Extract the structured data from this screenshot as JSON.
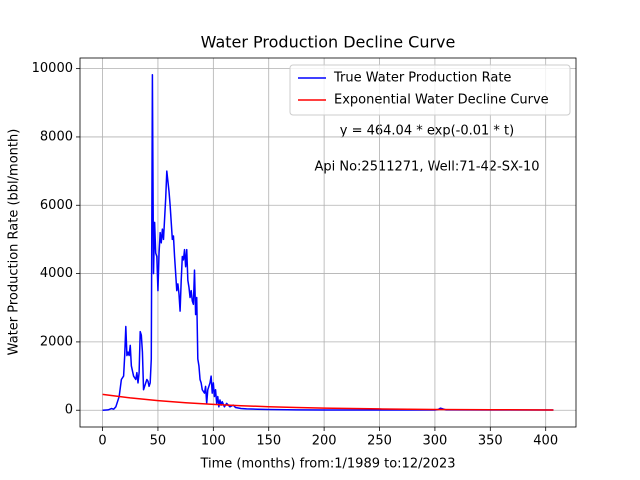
{
  "chart_data": {
    "type": "line",
    "title": "Water Production Decline Curve",
    "xlabel": "Time (months) from:1/1989 to:12/2023",
    "ylabel": "Water Production Rate (bbl/month)",
    "annotations": [
      "y = 464.04 * exp(-0.01 * t)",
      "Api No:2511271, Well:71-42-SX-10"
    ],
    "xlim": [
      -20.35,
      427.35
    ],
    "xticks": [
      0,
      50,
      100,
      150,
      200,
      250,
      300,
      350,
      400
    ],
    "ylim": [
      -491,
      10311
    ],
    "yticks": [
      0,
      2000,
      4000,
      6000,
      8000,
      10000
    ],
    "grid": true,
    "legend": "upper right",
    "series": [
      {
        "name": "True Water Production Rate",
        "color": "#0000ff",
        "x": [
          0,
          5,
          8,
          10,
          12,
          15,
          17,
          19,
          20,
          21,
          22,
          23,
          24,
          25,
          26,
          28,
          30,
          31,
          32,
          33,
          34,
          35,
          36,
          37,
          38,
          39,
          40,
          41,
          42,
          43,
          44,
          45,
          46,
          47,
          48,
          49,
          50,
          51,
          52,
          53,
          54,
          55,
          56,
          57,
          58,
          59,
          60,
          61,
          62,
          63,
          64,
          65,
          66,
          67,
          68,
          69,
          70,
          71,
          72,
          73,
          74,
          75,
          76,
          77,
          78,
          79,
          80,
          81,
          82,
          83,
          84,
          85,
          86,
          87,
          88,
          89,
          90,
          92,
          93,
          94,
          95,
          96,
          97,
          98,
          99,
          100,
          101,
          102,
          103,
          104,
          105,
          106,
          107,
          108,
          110,
          112,
          115,
          118,
          120,
          125,
          130,
          140,
          150,
          175,
          200,
          250,
          300,
          303,
          305,
          306,
          308,
          310,
          350,
          400,
          407
        ],
        "values": [
          0,
          10,
          50,
          30,
          100,
          400,
          900,
          1000,
          1600,
          2450,
          1600,
          1700,
          1600,
          1900,
          1300,
          1000,
          900,
          1100,
          800,
          1100,
          2300,
          2200,
          1700,
          600,
          700,
          800,
          900,
          850,
          700,
          800,
          1500,
          9820,
          4000,
          5500,
          4600,
          4500,
          3500,
          4600,
          5200,
          4900,
          5300,
          5000,
          5600,
          6200,
          7000,
          6700,
          6400,
          6000,
          5500,
          5000,
          5100,
          4500,
          4000,
          3500,
          3700,
          3400,
          2900,
          3800,
          4500,
          4400,
          4700,
          4200,
          4700,
          3800,
          3600,
          3300,
          3500,
          3200,
          3100,
          4100,
          2800,
          3300,
          1500,
          1300,
          900,
          800,
          600,
          500,
          700,
          200,
          600,
          700,
          800,
          1000,
          500,
          800,
          400,
          600,
          200,
          400,
          100,
          300,
          150,
          250,
          100,
          200,
          100,
          150,
          80,
          50,
          40,
          30,
          20,
          10,
          5,
          5,
          5,
          20,
          60,
          50,
          30,
          10,
          5,
          5,
          5
        ]
      },
      {
        "name": "Exponential Water Decline Curve",
        "color": "#ff0000",
        "x": [
          0,
          25,
          50,
          75,
          100,
          125,
          150,
          175,
          200,
          250,
          300,
          350,
          407
        ],
        "values": [
          464.04,
          361.4,
          281.4,
          219.2,
          170.7,
          132.9,
          103.5,
          80.6,
          62.8,
          38.1,
          23.1,
          14.0,
          7.9
        ]
      }
    ]
  }
}
